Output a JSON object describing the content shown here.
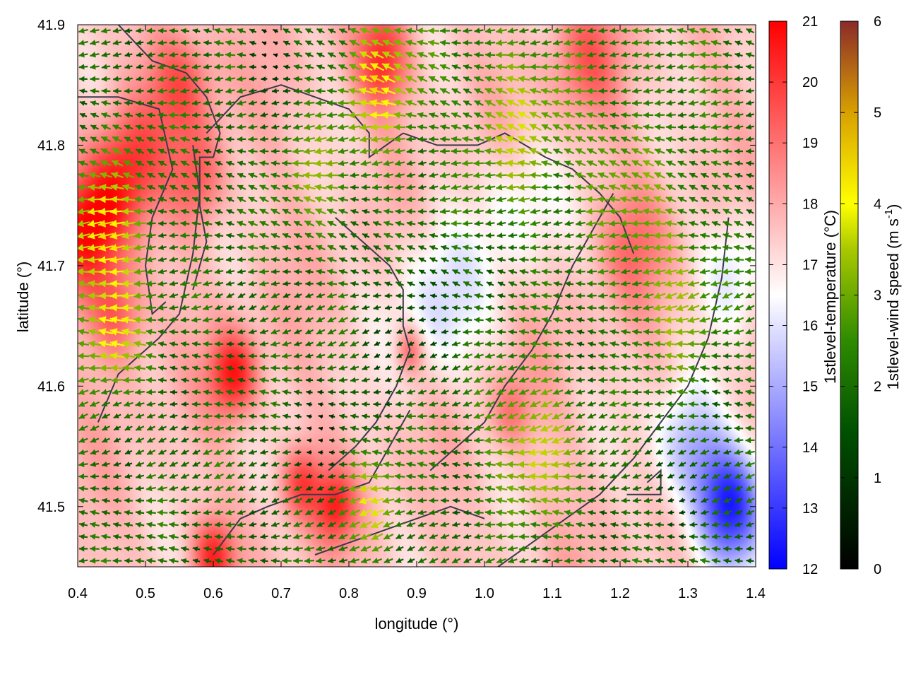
{
  "chart_data": {
    "type": "heatmap",
    "description_scalar": "1stlevel-temperature",
    "xlabel": "longitude (°)",
    "ylabel": "latitude (°)",
    "xlim": [
      0.4,
      1.4
    ],
    "ylim": [
      41.45,
      41.9
    ],
    "x_ticks": [
      "0.4",
      "0.5",
      "0.6",
      "0.7",
      "0.8",
      "0.9",
      "1.0",
      "1.1",
      "1.2",
      "1.3",
      "1.4"
    ],
    "y_ticks": [
      "41.5",
      "41.6",
      "41.7",
      "41.8",
      "41.9"
    ],
    "grid": false,
    "colorbars": [
      {
        "label": "1stlevel-temperature (°C)",
        "range": [
          12,
          21
        ],
        "ticks": [
          "12",
          "13",
          "14",
          "15",
          "16",
          "17",
          "18",
          "19",
          "20",
          "21"
        ],
        "stops": [
          [
            "12",
            "#0000ff"
          ],
          [
            "16.5",
            "#ffffff"
          ],
          [
            "21",
            "#ff0000"
          ]
        ]
      },
      {
        "label_parts": [
          "1stlevel-wind speed (m s",
          "-1",
          ")"
        ],
        "range": [
          0,
          6
        ],
        "ticks": [
          "0",
          "1",
          "2",
          "3",
          "4",
          "5",
          "6"
        ],
        "stops": [
          [
            "0",
            "#000000"
          ],
          [
            "1.5",
            "#005000"
          ],
          [
            "2.5",
            "#2e8b00"
          ],
          [
            "3.5",
            "#a8c800"
          ],
          [
            "4",
            "#ffff00"
          ],
          [
            "5",
            "#d8a000"
          ],
          [
            "6",
            "#8b2a2a"
          ]
        ]
      }
    ],
    "temperature_field": {
      "base": 17.6,
      "anomalies": [
        {
          "lon": 0.42,
          "lat": 41.73,
          "dT": 3.2,
          "r": 0.05
        },
        {
          "lon": 0.47,
          "lat": 41.78,
          "dT": 2.4,
          "r": 0.05
        },
        {
          "lon": 0.46,
          "lat": 41.66,
          "dT": 2.0,
          "r": 0.04
        },
        {
          "lon": 0.58,
          "lat": 41.77,
          "dT": 1.8,
          "r": 0.04
        },
        {
          "lon": 0.63,
          "lat": 41.61,
          "dT": 3.0,
          "r": 0.035
        },
        {
          "lon": 0.55,
          "lat": 41.85,
          "dT": 2.0,
          "r": 0.05
        },
        {
          "lon": 0.85,
          "lat": 41.87,
          "dT": 2.6,
          "r": 0.04
        },
        {
          "lon": 0.73,
          "lat": 41.52,
          "dT": 2.3,
          "r": 0.03
        },
        {
          "lon": 0.78,
          "lat": 41.5,
          "dT": 2.4,
          "r": 0.03
        },
        {
          "lon": 0.6,
          "lat": 41.46,
          "dT": 2.6,
          "r": 0.03
        },
        {
          "lon": 0.89,
          "lat": 41.63,
          "dT": 2.0,
          "r": 0.02
        },
        {
          "lon": 1.04,
          "lat": 41.58,
          "dT": 1.4,
          "r": 0.03
        },
        {
          "lon": 0.93,
          "lat": 41.67,
          "dT": -1.6,
          "r": 0.07
        },
        {
          "lon": 1.05,
          "lat": 41.75,
          "dT": -1.2,
          "r": 0.06
        },
        {
          "lon": 1.36,
          "lat": 41.5,
          "dT": -4.8,
          "r": 0.05
        },
        {
          "lon": 1.3,
          "lat": 41.55,
          "dT": -2.5,
          "r": 0.05
        },
        {
          "lon": 1.37,
          "lat": 41.7,
          "dT": -1.5,
          "r": 0.05
        },
        {
          "lon": 1.22,
          "lat": 41.72,
          "dT": 1.2,
          "r": 0.05
        },
        {
          "lon": 1.15,
          "lat": 41.87,
          "dT": 1.5,
          "r": 0.05
        }
      ]
    },
    "wind_field": {
      "direction": "westward",
      "speed_range": [
        0,
        4.5
      ],
      "strong_zones": [
        {
          "lon": 0.44,
          "lat": 41.72,
          "speed": 4.3,
          "r": 0.06
        },
        {
          "lon": 0.45,
          "lat": 41.64,
          "speed": 3.8,
          "r": 0.04
        },
        {
          "lon": 0.85,
          "lat": 41.85,
          "speed": 3.9,
          "r": 0.06
        },
        {
          "lon": 1.05,
          "lat": 41.82,
          "speed": 3.4,
          "r": 0.08
        },
        {
          "lon": 1.07,
          "lat": 41.55,
          "speed": 3.8,
          "r": 0.06
        },
        {
          "lon": 0.84,
          "lat": 41.5,
          "speed": 3.6,
          "r": 0.04
        },
        {
          "lon": 1.28,
          "lat": 41.68,
          "speed": 3.3,
          "r": 0.07
        },
        {
          "lon": 0.75,
          "lat": 41.77,
          "speed": 3.0,
          "r": 0.05
        },
        {
          "lon": 1.2,
          "lat": 41.78,
          "speed": 3.0,
          "r": 0.06
        },
        {
          "lon": 1.3,
          "lat": 41.88,
          "speed": 2.8,
          "r": 0.05
        }
      ],
      "calm_zones": [
        {
          "lon": 0.88,
          "lat": 41.65,
          "speed": 1.2,
          "r": 0.05
        },
        {
          "lon": 0.75,
          "lat": 41.56,
          "speed": 0.8,
          "r": 0.04
        },
        {
          "lon": 0.68,
          "lat": 41.88,
          "speed": 0.6,
          "r": 0.03
        },
        {
          "lon": 1.3,
          "lat": 41.5,
          "speed": 0.9,
          "r": 0.03
        }
      ]
    },
    "contours": [
      [
        [
          0.4,
          41.84
        ],
        [
          0.46,
          41.84
        ],
        [
          0.52,
          41.83
        ],
        [
          0.54,
          41.78
        ],
        [
          0.51,
          41.74
        ],
        [
          0.5,
          41.7
        ],
        [
          0.51,
          41.66
        ],
        [
          0.53,
          41.67
        ]
      ],
      [
        [
          0.43,
          41.57
        ],
        [
          0.46,
          41.61
        ],
        [
          0.48,
          41.62
        ],
        [
          0.52,
          41.64
        ],
        [
          0.55,
          41.66
        ],
        [
          0.57,
          41.71
        ],
        [
          0.58,
          41.76
        ],
        [
          0.57,
          41.8
        ]
      ],
      [
        [
          0.46,
          41.9
        ],
        [
          0.51,
          41.87
        ],
        [
          0.56,
          41.86
        ],
        [
          0.59,
          41.84
        ],
        [
          0.61,
          41.81
        ],
        [
          0.6,
          41.79
        ],
        [
          0.58,
          41.79
        ],
        [
          0.58,
          41.75
        ],
        [
          0.59,
          41.72
        ],
        [
          0.57,
          41.68
        ]
      ],
      [
        [
          0.59,
          41.81
        ],
        [
          0.64,
          41.84
        ],
        [
          0.7,
          41.85
        ],
        [
          0.75,
          41.84
        ],
        [
          0.8,
          41.83
        ],
        [
          0.83,
          41.81
        ],
        [
          0.83,
          41.79
        ],
        [
          0.88,
          41.81
        ]
      ],
      [
        [
          0.88,
          41.81
        ],
        [
          0.93,
          41.8
        ],
        [
          0.99,
          41.8
        ],
        [
          1.03,
          41.81
        ],
        [
          1.06,
          41.8
        ],
        [
          1.09,
          41.79
        ],
        [
          1.13,
          41.78
        ],
        [
          1.17,
          41.76
        ],
        [
          1.2,
          41.74
        ],
        [
          1.22,
          41.71
        ]
      ],
      [
        [
          0.78,
          41.74
        ],
        [
          0.82,
          41.72
        ],
        [
          0.86,
          41.7
        ],
        [
          0.88,
          41.68
        ],
        [
          0.88,
          41.65
        ],
        [
          0.89,
          41.63
        ],
        [
          0.87,
          41.6
        ],
        [
          0.84,
          41.57
        ],
        [
          0.81,
          41.55
        ],
        [
          0.77,
          41.53
        ]
      ],
      [
        [
          0.6,
          41.46
        ],
        [
          0.64,
          41.49
        ],
        [
          0.68,
          41.5
        ],
        [
          0.73,
          41.51
        ],
        [
          0.78,
          41.51
        ],
        [
          0.83,
          41.52
        ],
        [
          0.86,
          41.55
        ],
        [
          0.89,
          41.58
        ]
      ],
      [
        [
          0.92,
          41.53
        ],
        [
          0.96,
          41.55
        ],
        [
          1.0,
          41.57
        ],
        [
          1.03,
          41.6
        ],
        [
          1.07,
          41.63
        ],
        [
          1.1,
          41.66
        ],
        [
          1.13,
          41.7
        ],
        [
          1.16,
          41.73
        ],
        [
          1.19,
          41.76
        ]
      ],
      [
        [
          1.02,
          41.45
        ],
        [
          1.07,
          41.47
        ],
        [
          1.12,
          41.49
        ],
        [
          1.17,
          41.51
        ],
        [
          1.22,
          41.54
        ],
        [
          1.26,
          41.57
        ],
        [
          1.3,
          41.6
        ],
        [
          1.33,
          41.64
        ],
        [
          1.35,
          41.69
        ],
        [
          1.36,
          41.74
        ]
      ],
      [
        [
          1.21,
          41.51
        ],
        [
          1.26,
          41.51
        ],
        [
          1.26,
          41.53
        ],
        [
          1.24,
          41.52
        ]
      ],
      [
        [
          0.75,
          41.46
        ],
        [
          0.8,
          41.47
        ],
        [
          0.85,
          41.48
        ],
        [
          0.9,
          41.49
        ],
        [
          0.95,
          41.5
        ],
        [
          1.0,
          41.49
        ]
      ]
    ],
    "vector_grid": {
      "nx": 60,
      "ny": 45
    }
  }
}
